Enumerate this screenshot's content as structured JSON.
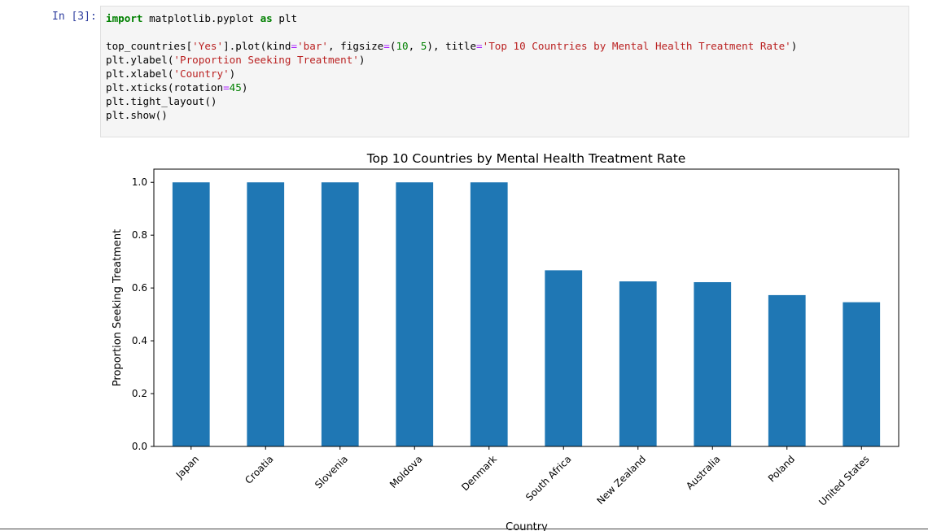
{
  "cell": {
    "prompt": "In [3]:",
    "code_lines": [
      [
        {
          "t": "import",
          "c": "kw"
        },
        {
          "t": " matplotlib.pyplot ",
          "c": ""
        },
        {
          "t": "as",
          "c": "kw"
        },
        {
          "t": " plt",
          "c": ""
        }
      ],
      [],
      [
        {
          "t": "top_countries[",
          "c": ""
        },
        {
          "t": "'Yes'",
          "c": "str"
        },
        {
          "t": "].plot(kind",
          "c": ""
        },
        {
          "t": "=",
          "c": "op"
        },
        {
          "t": "'bar'",
          "c": "str"
        },
        {
          "t": ", figsize",
          "c": ""
        },
        {
          "t": "=",
          "c": "op"
        },
        {
          "t": "(",
          "c": ""
        },
        {
          "t": "10",
          "c": "num"
        },
        {
          "t": ", ",
          "c": ""
        },
        {
          "t": "5",
          "c": "num"
        },
        {
          "t": "), title",
          "c": ""
        },
        {
          "t": "=",
          "c": "op"
        },
        {
          "t": "'Top 10 Countries by Mental Health Treatment Rate'",
          "c": "str"
        },
        {
          "t": ")",
          "c": ""
        }
      ],
      [
        {
          "t": "plt.ylabel(",
          "c": ""
        },
        {
          "t": "'Proportion Seeking Treatment'",
          "c": "str"
        },
        {
          "t": ")",
          "c": ""
        }
      ],
      [
        {
          "t": "plt.xlabel(",
          "c": ""
        },
        {
          "t": "'Country'",
          "c": "str"
        },
        {
          "t": ")",
          "c": ""
        }
      ],
      [
        {
          "t": "plt.xticks(rotation",
          "c": ""
        },
        {
          "t": "=",
          "c": "op"
        },
        {
          "t": "45",
          "c": "num"
        },
        {
          "t": ")",
          "c": ""
        }
      ],
      [
        {
          "t": "plt.tight_layout()",
          "c": ""
        }
      ],
      [
        {
          "t": "plt.show()",
          "c": ""
        }
      ]
    ]
  },
  "chart_data": {
    "type": "bar",
    "title": "Top 10 Countries by Mental Health Treatment Rate",
    "xlabel": "Country",
    "ylabel": "Proportion Seeking Treatment",
    "categories": [
      "Japan",
      "Croatia",
      "Slovenia",
      "Moldova",
      "Denmark",
      "South Africa",
      "New Zealand",
      "Australia",
      "Poland",
      "United States"
    ],
    "values": [
      1.0,
      1.0,
      1.0,
      1.0,
      1.0,
      0.667,
      0.625,
      0.622,
      0.573,
      0.546
    ],
    "ylim": [
      0,
      1.05
    ],
    "yticks": [
      0.0,
      0.2,
      0.4,
      0.6,
      0.8,
      1.0
    ],
    "ytick_labels": [
      "0.0",
      "0.2",
      "0.4",
      "0.6",
      "0.8",
      "1.0"
    ],
    "xtick_rotation": 45,
    "grid": false,
    "legend": false,
    "bar_color": "#1f77b4"
  }
}
